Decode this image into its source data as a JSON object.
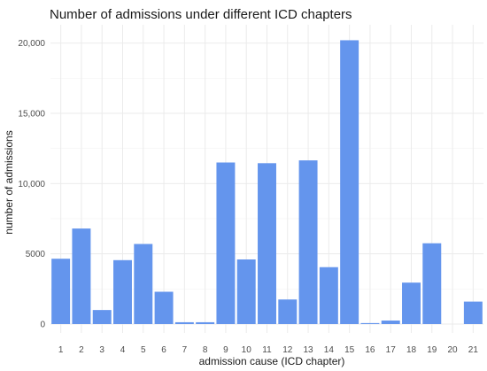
{
  "chart_data": {
    "type": "bar",
    "title": "Number of admissions under different ICD chapters",
    "xlabel": "admission cause (ICD chapter)",
    "ylabel": "number of admissions",
    "categories": [
      "1",
      "2",
      "3",
      "4",
      "5",
      "6",
      "7",
      "8",
      "9",
      "10",
      "11",
      "12",
      "13",
      "14",
      "15",
      "16",
      "17",
      "18",
      "19",
      "20",
      "21"
    ],
    "values": [
      4650,
      6800,
      1000,
      4550,
      5700,
      2300,
      130,
      130,
      11500,
      4600,
      11450,
      1750,
      11650,
      4050,
      20200,
      70,
      250,
      2950,
      5750,
      0,
      1600
    ],
    "ylim": [
      0,
      21300
    ],
    "yticks": [
      0,
      5000,
      10000,
      15000,
      20000
    ],
    "ytick_labels": [
      "0",
      "5000",
      "10,000",
      "15,000",
      "20,000"
    ],
    "bar_color": "#6495ED",
    "grid": true,
    "legend": "none"
  }
}
